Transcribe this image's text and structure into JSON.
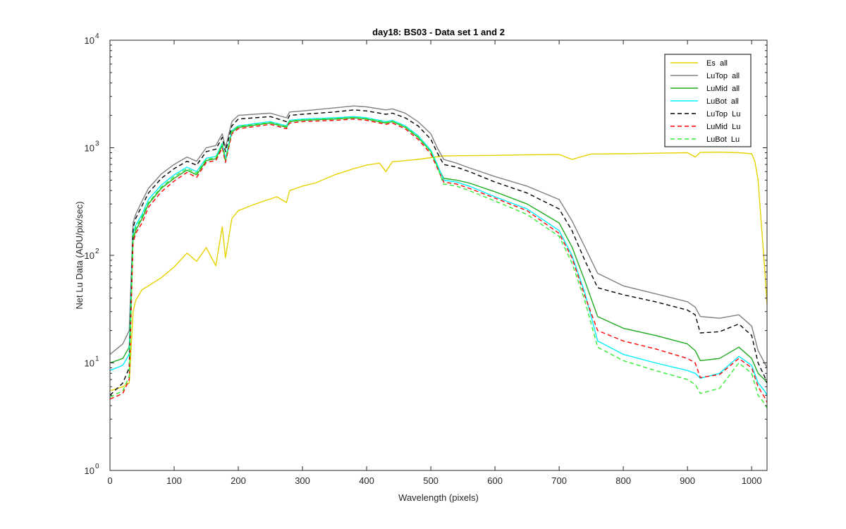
{
  "chart_data": {
    "type": "line",
    "title": "day18: BS03 - Data set 1 and 2",
    "xlabel": "Wavelength (pixels)",
    "ylabel": "Net Lu Data (ADU/pix/sec)",
    "xlim": [
      0,
      1024
    ],
    "ylim": [
      1,
      10000
    ],
    "yscale": "log",
    "grid": false,
    "legend_position": "top-right",
    "xticks": [
      0,
      100,
      200,
      300,
      400,
      500,
      600,
      700,
      800,
      900,
      1000
    ],
    "xtick_labels": [
      "0",
      "100",
      "200",
      "300",
      "400",
      "500",
      "600",
      "700",
      "800",
      "900",
      "1000"
    ],
    "yticks": [
      1,
      10,
      100,
      1000,
      10000
    ],
    "ytick_base": [
      "10",
      "10",
      "10",
      "10",
      "10"
    ],
    "ytick_exp": [
      "0",
      "1",
      "2",
      "3",
      "4"
    ],
    "series": [
      {
        "name": "Es  all",
        "color": "#e6d200",
        "dash": "solid",
        "x": [
          0,
          20,
          30,
          36,
          40,
          50,
          60,
          80,
          100,
          120,
          135,
          150,
          165,
          175,
          180,
          190,
          200,
          220,
          240,
          260,
          275,
          280,
          300,
          320,
          350,
          380,
          400,
          420,
          430,
          440,
          460,
          480,
          500,
          520,
          550,
          600,
          650,
          700,
          720,
          750,
          800,
          850,
          900,
          912,
          920,
          950,
          980,
          1000,
          1005,
          1010,
          1015,
          1020,
          1024
        ],
        "y": [
          5.5,
          6.0,
          6.5,
          30,
          38,
          48,
          52,
          62,
          78,
          105,
          88,
          118,
          80,
          185,
          95,
          220,
          260,
          290,
          320,
          350,
          310,
          400,
          440,
          470,
          560,
          640,
          690,
          720,
          600,
          740,
          760,
          780,
          810,
          840,
          845,
          850,
          860,
          865,
          780,
          875,
          880,
          890,
          900,
          820,
          905,
          910,
          900,
          880,
          750,
          500,
          200,
          80,
          35
        ]
      },
      {
        "name": "LuTop  all",
        "color": "#808080",
        "dash": "solid",
        "x": [
          0,
          20,
          30,
          36,
          40,
          50,
          60,
          80,
          100,
          120,
          135,
          150,
          165,
          175,
          180,
          190,
          200,
          250,
          275,
          280,
          300,
          350,
          380,
          400,
          430,
          440,
          460,
          480,
          500,
          510,
          520,
          540,
          560,
          600,
          650,
          700,
          720,
          740,
          760,
          800,
          850,
          900,
          912,
          920,
          950,
          980,
          1000,
          1010,
          1020,
          1024
        ],
        "y": [
          12,
          15,
          20,
          200,
          240,
          320,
          420,
          570,
          700,
          820,
          750,
          1000,
          1050,
          1350,
          1000,
          1750,
          2000,
          2100,
          1900,
          2150,
          2200,
          2350,
          2450,
          2400,
          2250,
          2300,
          2100,
          1750,
          1350,
          1000,
          780,
          720,
          650,
          540,
          440,
          330,
          210,
          120,
          68,
          52,
          44,
          37,
          33,
          27,
          26,
          28,
          22,
          13,
          10,
          9
        ]
      },
      {
        "name": "LuMid  all",
        "color": "#1faa1f",
        "dash": "solid",
        "x": [
          0,
          20,
          30,
          36,
          40,
          50,
          60,
          80,
          100,
          120,
          135,
          150,
          165,
          175,
          180,
          190,
          200,
          250,
          275,
          280,
          300,
          350,
          380,
          400,
          430,
          440,
          460,
          480,
          500,
          510,
          520,
          540,
          560,
          600,
          650,
          700,
          720,
          740,
          760,
          800,
          850,
          900,
          912,
          920,
          950,
          980,
          1000,
          1010,
          1020,
          1024
        ],
        "y": [
          10,
          11,
          14,
          140,
          170,
          220,
          300,
          420,
          520,
          620,
          560,
          760,
          790,
          1050,
          760,
          1400,
          1550,
          1700,
          1550,
          1750,
          1800,
          1850,
          1900,
          1850,
          1700,
          1750,
          1550,
          1250,
          920,
          680,
          520,
          500,
          470,
          390,
          300,
          200,
          120,
          58,
          27,
          21,
          18,
          15,
          13,
          10.5,
          11,
          14,
          11,
          8,
          7,
          6.5
        ]
      },
      {
        "name": "LuBot  all",
        "color": "#00f0ff",
        "dash": "solid",
        "x": [
          0,
          20,
          30,
          36,
          40,
          50,
          60,
          80,
          100,
          120,
          135,
          150,
          165,
          175,
          180,
          190,
          200,
          250,
          275,
          280,
          300,
          350,
          380,
          400,
          430,
          440,
          460,
          480,
          500,
          510,
          520,
          540,
          560,
          600,
          650,
          700,
          720,
          740,
          760,
          800,
          850,
          900,
          912,
          920,
          950,
          980,
          1000,
          1010,
          1020,
          1024
        ],
        "y": [
          8.5,
          9.5,
          12,
          160,
          190,
          240,
          330,
          450,
          560,
          660,
          600,
          800,
          830,
          1100,
          800,
          1450,
          1600,
          1750,
          1600,
          1800,
          1850,
          1900,
          1950,
          1900,
          1750,
          1800,
          1600,
          1300,
          950,
          700,
          500,
          480,
          440,
          350,
          270,
          170,
          100,
          45,
          16,
          12,
          10,
          8.5,
          8,
          7.2,
          8,
          11.5,
          9.5,
          6.5,
          5.5,
          5
        ]
      },
      {
        "name": "LuTop  Lu",
        "color": "#000000",
        "dash": "dashed",
        "x": [
          0,
          20,
          30,
          36,
          40,
          50,
          60,
          80,
          100,
          120,
          135,
          150,
          165,
          175,
          180,
          190,
          200,
          250,
          275,
          280,
          300,
          350,
          380,
          400,
          430,
          440,
          460,
          480,
          500,
          510,
          520,
          540,
          560,
          600,
          650,
          700,
          720,
          740,
          760,
          800,
          850,
          900,
          912,
          920,
          950,
          980,
          1000,
          1010,
          1020,
          1024
        ],
        "y": [
          5.0,
          6.5,
          9,
          180,
          220,
          290,
          380,
          520,
          640,
          750,
          690,
          920,
          970,
          1250,
          920,
          1600,
          1850,
          1950,
          1750,
          2000,
          2050,
          2150,
          2250,
          2200,
          2050,
          2100,
          1900,
          1600,
          1200,
          900,
          700,
          660,
          600,
          480,
          380,
          270,
          170,
          90,
          50,
          43,
          37,
          31,
          28,
          19,
          19.5,
          23,
          18,
          10,
          7.5,
          6.5
        ]
      },
      {
        "name": "LuMid  Lu",
        "color": "#ff0000",
        "dash": "dashed",
        "x": [
          0,
          20,
          30,
          36,
          40,
          50,
          60,
          80,
          100,
          120,
          135,
          150,
          165,
          175,
          180,
          190,
          200,
          250,
          275,
          280,
          300,
          350,
          380,
          400,
          430,
          440,
          460,
          480,
          500,
          510,
          520,
          540,
          560,
          600,
          650,
          700,
          720,
          740,
          760,
          800,
          850,
          900,
          912,
          920,
          950,
          980,
          1000,
          1010,
          1020,
          1024
        ],
        "y": [
          4.6,
          5.2,
          7,
          130,
          160,
          200,
          280,
          390,
          490,
          590,
          530,
          730,
          760,
          1000,
          730,
          1350,
          1500,
          1650,
          1500,
          1700,
          1750,
          1800,
          1850,
          1800,
          1650,
          1700,
          1500,
          1200,
          880,
          650,
          480,
          460,
          420,
          340,
          260,
          160,
          95,
          42,
          20,
          16,
          13.5,
          11,
          10,
          7.3,
          7.8,
          11,
          9,
          6,
          4.8,
          4.3
        ]
      },
      {
        "name": "LuBot  Lu",
        "color": "#33ee33",
        "dash": "dashed",
        "x": [
          0,
          20,
          30,
          36,
          40,
          50,
          60,
          80,
          100,
          120,
          135,
          150,
          165,
          175,
          180,
          190,
          200,
          250,
          275,
          280,
          300,
          350,
          380,
          400,
          430,
          440,
          460,
          480,
          500,
          510,
          520,
          540,
          560,
          600,
          650,
          700,
          720,
          740,
          760,
          800,
          850,
          900,
          912,
          920,
          950,
          980,
          1000,
          1010,
          1020,
          1024
        ],
        "y": [
          4.8,
          5.5,
          7.5,
          150,
          180,
          230,
          310,
          430,
          540,
          640,
          580,
          780,
          810,
          1080,
          780,
          1430,
          1580,
          1720,
          1580,
          1770,
          1820,
          1870,
          1920,
          1870,
          1720,
          1770,
          1570,
          1270,
          920,
          670,
          460,
          440,
          400,
          320,
          240,
          150,
          85,
          38,
          14,
          10.5,
          8.5,
          7,
          6.3,
          5.2,
          5.8,
          10,
          8,
          5,
          4.2,
          3.8
        ]
      }
    ]
  }
}
